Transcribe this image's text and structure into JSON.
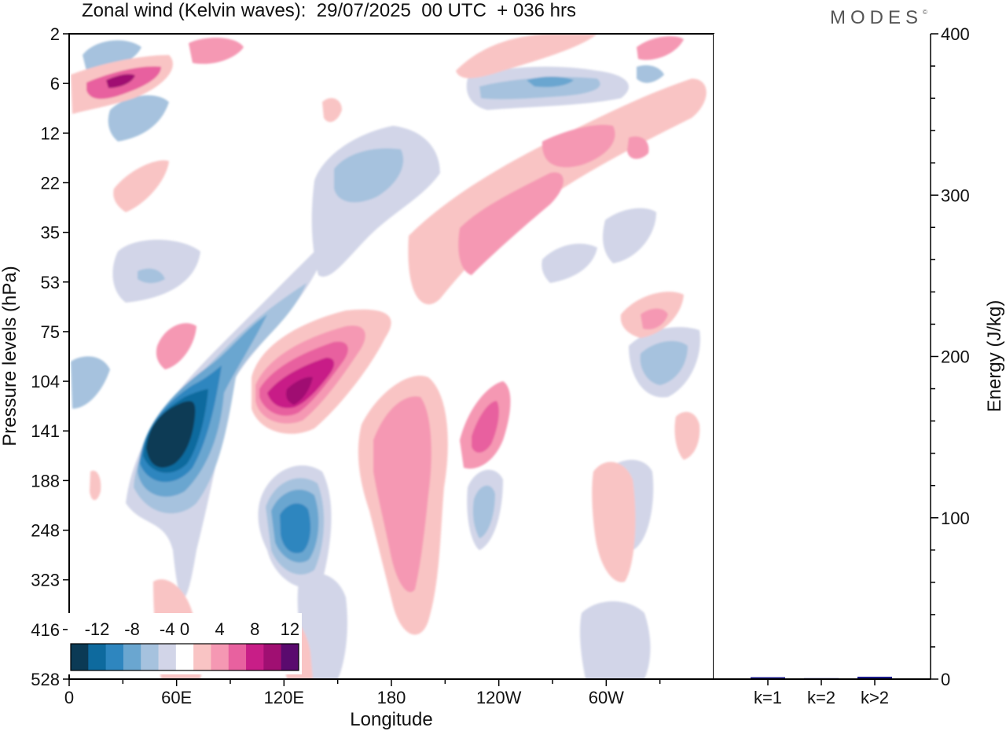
{
  "header": {
    "title": "Zonal wind (Kelvin waves):  29/07/2025  00 UTC  + 036 hrs",
    "brand": "MODES"
  },
  "chart_data": [
    {
      "type": "heatmap",
      "title": "Zonal wind (Kelvin waves):  29/07/2025  00 UTC  + 036 hrs",
      "xlabel": "Longitude",
      "ylabel": "Pressure levels (hPa)",
      "x_ticks": [
        "0",
        "60E",
        "120E",
        "180",
        "120W",
        "60W"
      ],
      "x_tick_values": [
        0,
        60,
        120,
        180,
        240,
        300
      ],
      "x_range": [
        0,
        360
      ],
      "y_ticks": [
        "2",
        "6",
        "12",
        "22",
        "35",
        "53",
        "75",
        "104",
        "141",
        "188",
        "248",
        "323",
        "416",
        "528"
      ],
      "colorbar": {
        "labels": [
          "-12",
          "-8",
          "-4",
          "0",
          "4",
          "8",
          "12"
        ],
        "levels": [
          -14,
          -12,
          -10,
          -8,
          -6,
          -4,
          -2,
          2,
          4,
          6,
          8,
          10,
          12,
          14
        ],
        "colors": [
          "#0b3a55",
          "#0e6a9e",
          "#2e86bf",
          "#6aa6d0",
          "#a6c2de",
          "#d2d5e8",
          "#ffffff",
          "#f9c4c4",
          "#f598b3",
          "#e8619f",
          "#c81e87",
          "#a00f72",
          "#5a0a6e"
        ]
      },
      "features": [
        {
          "sign": "negative",
          "peak": -14,
          "lon": 52,
          "level": "141"
        },
        {
          "sign": "negative",
          "peak": -10,
          "lon": 126,
          "level": "248"
        },
        {
          "sign": "positive",
          "peak": 12,
          "lon": 128,
          "level": "104"
        },
        {
          "sign": "positive",
          "peak": 10,
          "lon": 24,
          "level": "6"
        },
        {
          "sign": "positive",
          "peak": 8,
          "lon": 234,
          "level": "141"
        },
        {
          "sign": "negative",
          "peak": -6,
          "lon": 284,
          "level": "6"
        }
      ]
    },
    {
      "type": "bar",
      "categories": [
        "k=1",
        "k=2",
        "k>2"
      ],
      "values": [
        1.2,
        0.6,
        1.5
      ],
      "ylabel": "Energy (J/kg)",
      "ylim": [
        0,
        400
      ],
      "y_ticks": [
        "0",
        "100",
        "200",
        "300",
        "400"
      ],
      "y_tick_values": [
        0,
        100,
        200,
        300,
        400
      ],
      "bar_color": "#1a1a8c"
    }
  ]
}
